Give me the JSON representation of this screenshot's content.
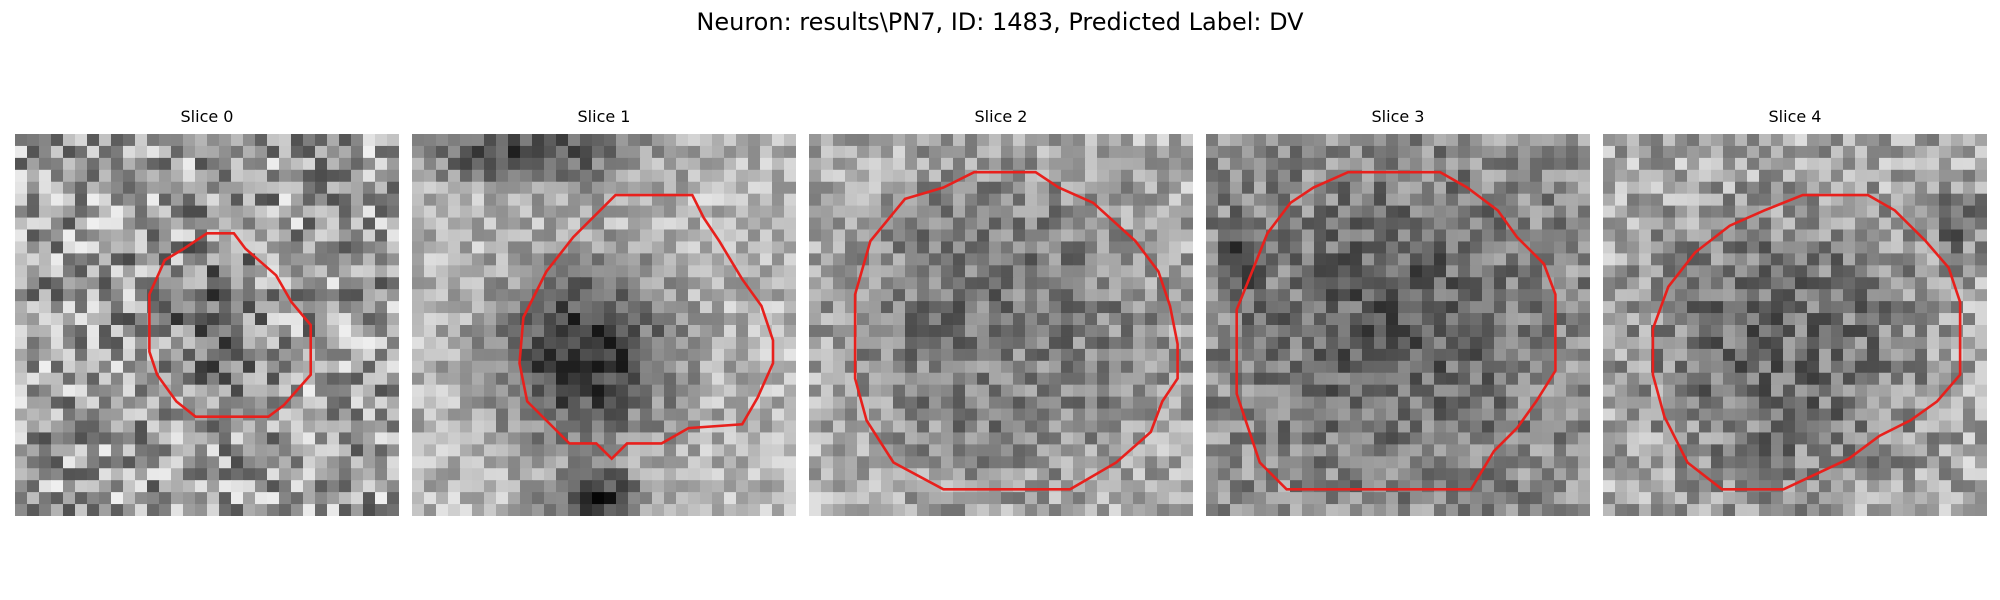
{
  "figure": {
    "title": "Neuron: results\\PN7, ID: 1483, Predicted Label: DV"
  },
  "panels": [
    {
      "title": "Slice 0"
    },
    {
      "title": "Slice 1"
    },
    {
      "title": "Slice 2"
    },
    {
      "title": "Slice 3"
    },
    {
      "title": "Slice 4"
    }
  ],
  "colors": {
    "contour": "#e8201c",
    "background": "#ffffff"
  }
}
